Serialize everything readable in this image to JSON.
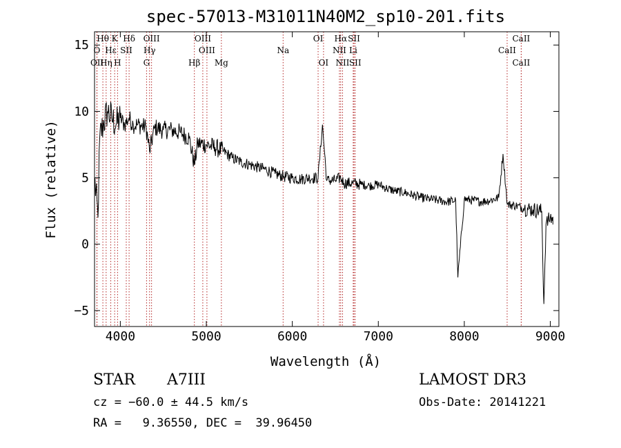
{
  "chart_data": {
    "type": "line",
    "title": "spec-57013-M31011N40M2_sp10-201.fits",
    "xlabel": "Wavelength (Å)",
    "ylabel": "Flux (relative)",
    "xlim": [
      3700,
      9100
    ],
    "ylim": [
      -6.2,
      16
    ],
    "x_ticks": [
      4000,
      5000,
      6000,
      7000,
      8000,
      9000
    ],
    "x_tick_labels": [
      "4000",
      "5000",
      "6000",
      "7000",
      "8000",
      "9000"
    ],
    "y_ticks": [
      -5,
      0,
      5,
      10,
      15
    ],
    "y_tick_labels": [
      "−5",
      "0",
      "5",
      "10",
      "15"
    ],
    "series": [
      {
        "name": "flux",
        "x": [
          3700,
          3740,
          3760,
          3800,
          3850,
          3900,
          3950,
          4000,
          4050,
          4100,
          4150,
          4200,
          4300,
          4340,
          4400,
          4500,
          4600,
          4700,
          4800,
          4861,
          4900,
          5000,
          5100,
          5200,
          5300,
          5400,
          5500,
          5600,
          5700,
          5800,
          5900,
          6000,
          6100,
          6200,
          6300,
          6350,
          6400,
          6500,
          6563,
          6600,
          6700,
          6800,
          6900,
          7000,
          7100,
          7200,
          7300,
          7400,
          7500,
          7600,
          7700,
          7800,
          7900,
          7925,
          8000,
          8100,
          8200,
          8300,
          8400,
          8450,
          8500,
          8600,
          8700,
          8800,
          8900,
          8925,
          8950,
          9000,
          9050
        ],
        "y": [
          5,
          2,
          8,
          9,
          10,
          9.5,
          9,
          9.5,
          9,
          9.5,
          9,
          9,
          8.8,
          7,
          8.8,
          8.6,
          8.6,
          8.4,
          8,
          6,
          7.6,
          7.5,
          7.3,
          7,
          6.5,
          6.2,
          6,
          5.8,
          5.6,
          5.3,
          5.1,
          5,
          4.9,
          5,
          5,
          9,
          4.8,
          4.8,
          5,
          4.6,
          4.6,
          4.5,
          4.4,
          4.5,
          4.2,
          4.0,
          3.9,
          3.7,
          3.5,
          3.4,
          3.3,
          3.2,
          3.3,
          -2.5,
          3.4,
          3.3,
          3.2,
          3.3,
          3.5,
          6.8,
          3.0,
          2.9,
          2.7,
          2.6,
          2.5,
          -4.5,
          1.5,
          2.0,
          1.8
        ]
      }
    ],
    "line_groups": [
      {
        "label": "Hθ",
        "x": 3797,
        "row": 0
      },
      {
        "label": "O",
        "x": 3727,
        "row": 1
      },
      {
        "label": "OII",
        "x": 3729,
        "row": 2
      },
      {
        "label": "Hη",
        "x": 3835,
        "row": 2
      },
      {
        "label": "K",
        "x": 3934,
        "row": 0
      },
      {
        "label": "Hε",
        "x": 3889,
        "row": 1
      },
      {
        "label": "SII",
        "x": 4069,
        "row": 1
      },
      {
        "label": "H",
        "x": 3968,
        "row": 2
      },
      {
        "label": "Hδ",
        "x": 4102,
        "row": 0
      },
      {
        "label": "OIII",
        "x": 4363,
        "row": 0
      },
      {
        "label": "Hγ",
        "x": 4340,
        "row": 1
      },
      {
        "label": "G",
        "x": 4305,
        "row": 2
      },
      {
        "label": "OIII",
        "x": 4959,
        "row": 0
      },
      {
        "label": "OIII",
        "x": 5007,
        "row": 1
      },
      {
        "label": "Hβ",
        "x": 4861,
        "row": 2
      },
      {
        "label": "Mg",
        "x": 5175,
        "row": 2
      },
      {
        "label": "Na",
        "x": 5893,
        "row": 1
      },
      {
        "label": "OI",
        "x": 6300,
        "row": 0
      },
      {
        "label": "OI",
        "x": 6363,
        "row": 2
      },
      {
        "label": "Hα",
        "x": 6563,
        "row": 0
      },
      {
        "label": "SII",
        "x": 6717,
        "row": 0
      },
      {
        "label": "NII",
        "x": 6548,
        "row": 1
      },
      {
        "label": "Li",
        "x": 6708,
        "row": 1
      },
      {
        "label": "NII",
        "x": 6584,
        "row": 2
      },
      {
        "label": "SII",
        "x": 6731,
        "row": 2
      },
      {
        "label": "CaII",
        "x": 8662,
        "row": 0
      },
      {
        "label": "CaII",
        "x": 8498,
        "row": 1
      },
      {
        "label": "CaII",
        "x": 8662,
        "row": 2
      }
    ]
  },
  "info": {
    "class": "STAR",
    "subclass": "A7III",
    "survey": "LAMOST DR3",
    "cz": "cz = −60.0 ± 44.5 km/s",
    "obs_date": "Obs-Date: 20141221",
    "coords": "RA =   9.36550, DEC =  39.96450"
  },
  "colors": {
    "spectrum": "#000000",
    "line_marker": "#b22222",
    "axis": "#000000",
    "background": "#ffffff"
  }
}
